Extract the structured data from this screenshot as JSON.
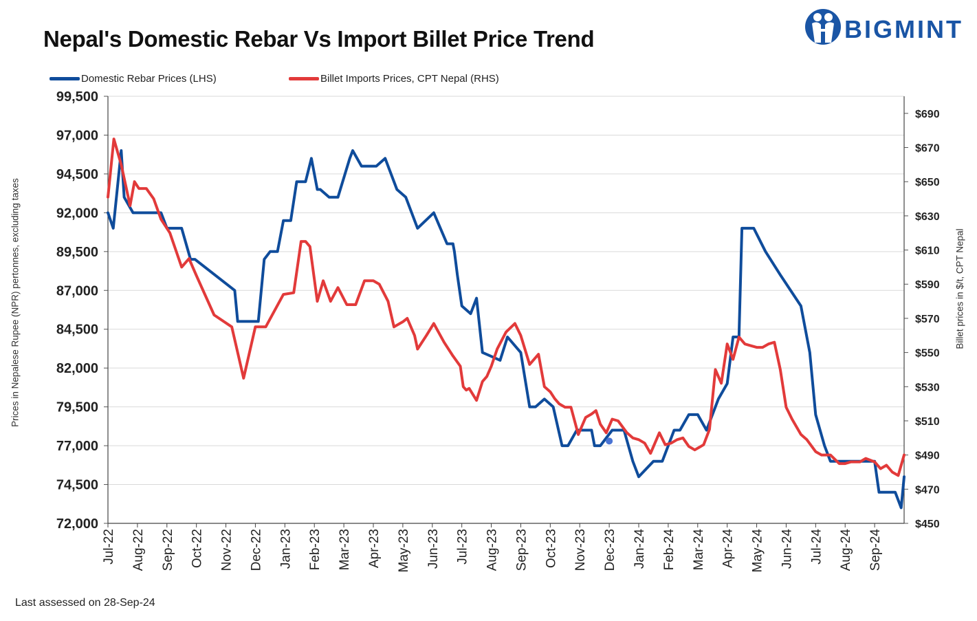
{
  "title": "Nepal's Domestic Rebar Vs Import Billet Price Trend",
  "logo_text": "BIGMINT",
  "footnote": "Last assessed on 28-Sep-24",
  "colors": {
    "domestic": "#0f4c9b",
    "billet": "#e23a3a",
    "brand": "#1a55a5"
  },
  "chart_data": {
    "type": "line",
    "title": "Nepal's Domestic Rebar Vs Import Billet Price Trend",
    "left_axis_label": "Prices in Nepalese Rupee (NPR) pertonnes, excluding taxes",
    "right_axis_label": "Billet prices in $/t, CPT Nepal",
    "left_axis": {
      "min": 72000,
      "max": 99500,
      "ticks": [
        "99,500",
        "97,000",
        "94,500",
        "92,000",
        "89,500",
        "87,000",
        "84,500",
        "82,000",
        "79,500",
        "77,000",
        "74,500",
        "72,000"
      ]
    },
    "right_axis": {
      "min": 450,
      "max": 700,
      "ticks": [
        "$690",
        "$670",
        "$650",
        "$630",
        "$610",
        "$590",
        "$570",
        "$550",
        "$530",
        "$510",
        "$490",
        "$470",
        "$450"
      ]
    },
    "x_labels": [
      "Jul-22",
      "Aug-22",
      "Sep-22",
      "Oct-22",
      "Nov-22",
      "Dec-22",
      "Jan-23",
      "Feb-23",
      "Mar-23",
      "Apr-23",
      "May-23",
      "Jun-23",
      "Jul-23",
      "Aug-23",
      "Sep-23",
      "Oct-23",
      "Nov-23",
      "Dec-23",
      "Jan-24",
      "Feb-24",
      "Mar-24",
      "Apr-24",
      "May-24",
      "Jun-24",
      "Jul-24",
      "Aug-24",
      "Sep-24"
    ],
    "x_range": [
      0,
      27
    ],
    "grid": true,
    "legend": "top",
    "series": [
      {
        "name": "Domestic Rebar Prices (LHS)",
        "axis": "left",
        "x": [
          0,
          0.18,
          0.45,
          0.55,
          0.85,
          1.0,
          1.8,
          2.0,
          2.3,
          2.5,
          2.8,
          2.95,
          4.3,
          4.4,
          5.0,
          5.1,
          5.3,
          5.5,
          5.75,
          5.95,
          6.2,
          6.4,
          6.7,
          6.9,
          7.0,
          7.1,
          7.2,
          7.5,
          7.8,
          8.2,
          8.3,
          8.6,
          8.8,
          9.1,
          9.4,
          9.8,
          10.1,
          10.5,
          11.05,
          11.5,
          11.7,
          11.75,
          11.85,
          12.0,
          12.3,
          12.5,
          12.7,
          13.0,
          13.3,
          13.55,
          14.0,
          14.3,
          14.5,
          14.8,
          15.1,
          15.4,
          15.6,
          15.9,
          16.2,
          16.4,
          16.5,
          16.7,
          17.1,
          17.5,
          17.8,
          18.0,
          18.5,
          18.7,
          18.8,
          19.2,
          19.4,
          19.7,
          20.0,
          20.3,
          20.7,
          21.0,
          21.2,
          21.4,
          21.5,
          21.6,
          21.9,
          22.3,
          22.8,
          23.5,
          23.8,
          24.0,
          24.3,
          24.5,
          24.7,
          25.0,
          25.3,
          25.7,
          26.0,
          26.15,
          26.7,
          26.9,
          27.0
        ],
        "y": [
          92000,
          91000,
          96000,
          93000,
          92000,
          92000,
          92000,
          91000,
          91000,
          91000,
          89000,
          89000,
          87000,
          85000,
          85000,
          85000,
          89000,
          89500,
          89500,
          91500,
          91500,
          94000,
          94000,
          95500,
          94500,
          93500,
          93500,
          93000,
          93000,
          95500,
          96000,
          95000,
          95000,
          95000,
          95500,
          93500,
          93000,
          91000,
          92000,
          90000,
          90000,
          89500,
          88000,
          86000,
          85500,
          86500,
          83000,
          82750,
          82500,
          84000,
          83000,
          79500,
          79500,
          80000,
          79500,
          77000,
          77000,
          78000,
          78000,
          78000,
          77000,
          77000,
          78000,
          78000,
          76000,
          75000,
          76000,
          76000,
          76000,
          78000,
          78000,
          79000,
          79000,
          78000,
          80000,
          81000,
          84000,
          84000,
          91000,
          91000,
          91000,
          89500,
          88000,
          86000,
          83000,
          79000,
          77000,
          76000,
          76000,
          76000,
          76000,
          76000,
          76000,
          74000,
          74000,
          73000,
          75000
        ]
      },
      {
        "name": "Billet Imports Prices, CPT Nepal (RHS)",
        "axis": "right",
        "x": [
          0,
          0.2,
          0.45,
          0.75,
          0.9,
          1.05,
          1.3,
          1.55,
          1.8,
          2.1,
          2.5,
          2.75,
          3.0,
          3.6,
          4.2,
          4.6,
          5.0,
          5.35,
          5.95,
          6.3,
          6.55,
          6.7,
          6.85,
          7.1,
          7.3,
          7.55,
          7.8,
          8.1,
          8.4,
          8.7,
          9.0,
          9.2,
          9.5,
          9.7,
          10.0,
          10.15,
          10.4,
          10.5,
          10.8,
          11.05,
          11.4,
          11.7,
          11.95,
          12.05,
          12.15,
          12.25,
          12.5,
          12.7,
          12.85,
          13.0,
          13.2,
          13.5,
          13.8,
          14.0,
          14.3,
          14.6,
          14.8,
          15.0,
          15.15,
          15.3,
          15.5,
          15.7,
          15.95,
          16.2,
          16.4,
          16.55,
          16.7,
          16.9,
          17.1,
          17.3,
          17.6,
          17.8,
          18.0,
          18.2,
          18.4,
          18.7,
          18.9,
          19.1,
          19.3,
          19.5,
          19.7,
          19.9,
          20.2,
          20.4,
          20.6,
          20.8,
          21.0,
          21.2,
          21.4,
          21.6,
          21.8,
          22.0,
          22.2,
          22.4,
          22.6,
          22.8,
          23.0,
          23.2,
          23.5,
          23.7,
          24.0,
          24.2,
          24.5,
          24.8,
          25.0,
          25.2,
          25.5,
          25.7,
          26.0,
          26.2,
          26.4,
          26.6,
          26.8,
          27.0
        ],
        "y": [
          641,
          675,
          660,
          636,
          650,
          646,
          646,
          640,
          628,
          620,
          600,
          605,
          595,
          572,
          565,
          535,
          565,
          565,
          584,
          585,
          615,
          615,
          612,
          580,
          592,
          580,
          588,
          578,
          578,
          592,
          592,
          590,
          580,
          565,
          568,
          570,
          560,
          552,
          560,
          567,
          556,
          548,
          542,
          530,
          528,
          529,
          522,
          533,
          536,
          542,
          552,
          562,
          567,
          560,
          543,
          549,
          530,
          527,
          523,
          520,
          518,
          518,
          502,
          512,
          514,
          516,
          508,
          503,
          511,
          510,
          503,
          500,
          499,
          497,
          491,
          503,
          496,
          497,
          499,
          500,
          495,
          493,
          496,
          505,
          540,
          532,
          555,
          546,
          559,
          555,
          554,
          553,
          553,
          555,
          556,
          540,
          518,
          511,
          502,
          499,
          492,
          490,
          490,
          485,
          485,
          486,
          486,
          488,
          486,
          482,
          484,
          480,
          478,
          490
        ]
      }
    ],
    "marker": {
      "series": 0,
      "x": 17.0,
      "y": 77300
    }
  }
}
